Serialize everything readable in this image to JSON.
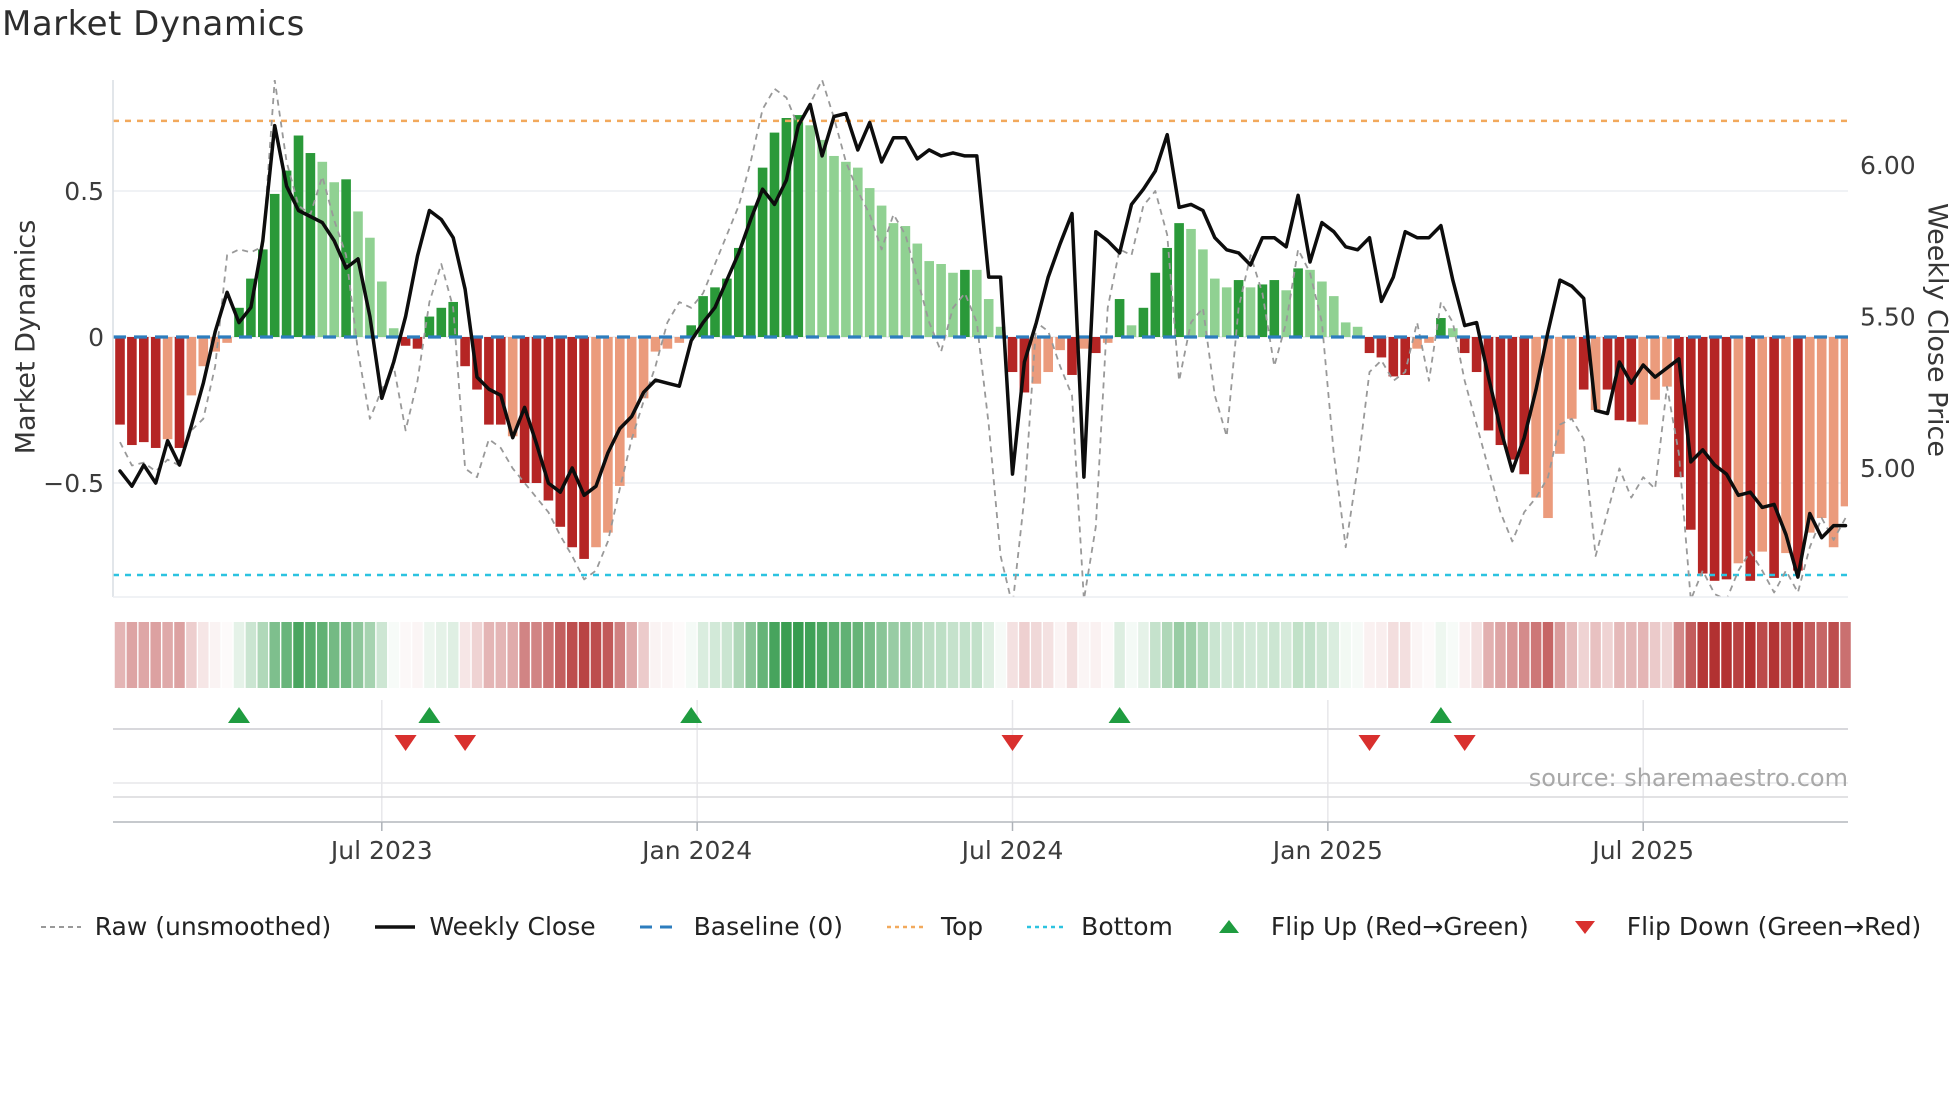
{
  "title": "Market Dynamics",
  "source": "source: sharemaestro.com",
  "left_axis": {
    "label": "Market Dynamics",
    "ticks": [
      {
        "label": "0.5",
        "value": 0.5
      },
      {
        "label": "0",
        "value": 0
      },
      {
        "label": "−0.5",
        "value": -0.5
      }
    ]
  },
  "right_axis": {
    "label": "Weekly Close Price",
    "ticks": [
      {
        "label": "6.00",
        "value": 6.0
      },
      {
        "label": "5.50",
        "value": 5.5
      },
      {
        "label": "5.00",
        "value": 5.0
      }
    ]
  },
  "x_axis": {
    "ticks": [
      {
        "label": "Jul 2023",
        "week": 22
      },
      {
        "label": "Jan 2024",
        "week": 48.5
      },
      {
        "label": "Jul 2024",
        "week": 75
      },
      {
        "label": "Jan 2025",
        "week": 101.5
      },
      {
        "label": "Jul 2025",
        "week": 128
      }
    ]
  },
  "legend": {
    "items": [
      {
        "label": "Raw (unsmoothed)",
        "glyph": "dashed-line",
        "color": "#999999",
        "dash": "5,4",
        "width": 2
      },
      {
        "label": "Weekly Close",
        "glyph": "solid-line",
        "color": "#111111",
        "dash": "",
        "width": 3.5
      },
      {
        "label": "Baseline (0)",
        "glyph": "dashed-line",
        "color": "#2d7dbe",
        "dash": "12,8",
        "width": 3
      },
      {
        "label": "Top",
        "glyph": "dotted-line",
        "color": "#f2a95c",
        "dash": "4,4",
        "width": 2.5
      },
      {
        "label": "Bottom",
        "glyph": "dotted-line",
        "color": "#2cc3e0",
        "dash": "4,4",
        "width": 2.5
      },
      {
        "label": "Flip Up (Red→Green)",
        "glyph": "triangle-up",
        "color": "#1f9c40"
      },
      {
        "label": "Flip Down (Green→Red)",
        "glyph": "triangle-down",
        "color": "#d9302e"
      }
    ]
  },
  "colors": {
    "bar_pos_strong": "#2a9939",
    "bar_pos_weak": "#90d192",
    "bar_neg_strong": "#b52524",
    "bar_neg_weak": "#eb9b7c",
    "price_line": "#0d0d0d",
    "raw_line": "#999999",
    "baseline": "#2d7dbe",
    "top_line": "#f2a95c",
    "bottom_line": "#2cc3e0",
    "flip_up": "#1f9c40",
    "flip_down": "#d9302e",
    "heat_pos": "#22923c",
    "heat_neg": "#b23030",
    "grid": "#ecedf2",
    "grid_dark": "#d8d8dc",
    "axis_line": "#c6c9cd",
    "spine": "#d9dde3",
    "tick_text": "#3c3c3c",
    "source_text": "#a8a8a8"
  },
  "chart_data": {
    "type": "bar",
    "description": "Weekly market-dynamics oscillator bars with weekly close price line, raw unsmoothed line, thresholds, heatmap strip and regime-flip markers",
    "weeks": 146,
    "baseline": 0,
    "top_threshold": 0.74,
    "bottom_threshold": -0.815,
    "ylim_dynamics": [
      -0.885,
      0.88
    ],
    "ylim_price": [
      4.57,
      6.28
    ],
    "flip_up_weeks": [
      10,
      26,
      48,
      84,
      111
    ],
    "flip_down_weeks": [
      24,
      29,
      75,
      105,
      113
    ],
    "bar_shades": "DDDDLDLLLLDDDDDDDLLDLLLLDDDDDDDDDLDDDDDDLLLLLLLLDDDDDDDDDDLLLLLLLLLLLLLDLLLDDLLLDLDLDLDDDDLLLLDLDDLDLLLLLDDDDLLDLDDDDDDLLLLDLDDDLLLDDDDDLDLDLDLLLL",
    "series": [
      {
        "name": "Smoothed Dynamics (bars)",
        "axis": "left",
        "values": [
          -0.3,
          -0.37,
          -0.36,
          -0.38,
          -0.35,
          -0.38,
          -0.2,
          -0.1,
          -0.05,
          -0.02,
          0.1,
          0.2,
          0.3,
          0.49,
          0.57,
          0.69,
          0.63,
          0.6,
          0.53,
          0.54,
          0.43,
          0.34,
          0.19,
          0.03,
          -0.03,
          -0.04,
          0.07,
          0.1,
          0.12,
          -0.1,
          -0.18,
          -0.3,
          -0.3,
          -0.34,
          -0.5,
          -0.5,
          -0.56,
          -0.65,
          -0.72,
          -0.76,
          -0.72,
          -0.67,
          -0.51,
          -0.345,
          -0.21,
          -0.05,
          -0.04,
          -0.02,
          0.04,
          0.14,
          0.17,
          0.2,
          0.305,
          0.45,
          0.58,
          0.7,
          0.75,
          0.76,
          0.725,
          0.675,
          0.62,
          0.6,
          0.58,
          0.51,
          0.45,
          0.39,
          0.38,
          0.32,
          0.26,
          0.25,
          0.22,
          0.23,
          0.23,
          0.13,
          0.035,
          -0.12,
          -0.19,
          -0.16,
          -0.12,
          -0.045,
          -0.13,
          -0.04,
          -0.055,
          -0.02,
          0.13,
          0.04,
          0.1,
          0.22,
          0.305,
          0.39,
          0.37,
          0.3,
          0.2,
          0.17,
          0.195,
          0.17,
          0.18,
          0.195,
          0.16,
          0.235,
          0.23,
          0.19,
          0.14,
          0.05,
          0.035,
          -0.055,
          -0.07,
          -0.135,
          -0.13,
          -0.04,
          -0.02,
          0.065,
          0.03,
          -0.055,
          -0.12,
          -0.32,
          -0.37,
          -0.42,
          -0.47,
          -0.55,
          -0.62,
          -0.4,
          -0.28,
          -0.18,
          -0.25,
          -0.18,
          -0.285,
          -0.29,
          -0.3,
          -0.215,
          -0.17,
          -0.48,
          -0.66,
          -0.81,
          -0.835,
          -0.83,
          -0.775,
          -0.835,
          -0.735,
          -0.825,
          -0.74,
          -0.8,
          -0.67,
          -0.62,
          -0.72,
          -0.58
        ]
      },
      {
        "name": "Raw (unsmoothed)",
        "axis": "left",
        "values": [
          -0.36,
          -0.44,
          -0.43,
          -0.46,
          -0.42,
          -0.44,
          -0.32,
          -0.28,
          -0.1,
          0.28,
          0.3,
          0.29,
          0.31,
          0.88,
          0.6,
          0.45,
          0.42,
          0.55,
          0.4,
          0.28,
          -0.05,
          -0.28,
          -0.18,
          -0.1,
          -0.32,
          -0.15,
          0.12,
          0.25,
          0.1,
          -0.45,
          -0.48,
          -0.35,
          -0.38,
          -0.45,
          -0.5,
          -0.55,
          -0.6,
          -0.68,
          -0.75,
          -0.83,
          -0.8,
          -0.7,
          -0.52,
          -0.35,
          -0.22,
          -0.1,
          0.05,
          0.12,
          0.1,
          0.15,
          0.25,
          0.35,
          0.45,
          0.6,
          0.78,
          0.85,
          0.82,
          0.72,
          0.8,
          0.88,
          0.75,
          0.6,
          0.5,
          0.42,
          0.3,
          0.42,
          0.35,
          0.2,
          0.05,
          -0.05,
          0.1,
          0.15,
          0.05,
          -0.3,
          -0.75,
          -0.92,
          -0.55,
          0.05,
          0.02,
          -0.1,
          -0.2,
          -0.9,
          -0.65,
          0.1,
          0.3,
          0.28,
          0.45,
          0.5,
          0.35,
          -0.15,
          0.05,
          0.1,
          -0.2,
          -0.34,
          0.1,
          0.28,
          0.15,
          -0.1,
          0.05,
          0.3,
          0.22,
          0.05,
          -0.4,
          -0.72,
          -0.45,
          -0.12,
          -0.08,
          -0.15,
          -0.12,
          0.05,
          -0.15,
          0.12,
          0.05,
          -0.15,
          -0.3,
          -0.45,
          -0.6,
          -0.7,
          -0.6,
          -0.55,
          -0.48,
          -0.3,
          -0.28,
          -0.35,
          -0.75,
          -0.6,
          -0.45,
          -0.55,
          -0.48,
          -0.52,
          -0.17,
          -0.4,
          -0.9,
          -0.8,
          -0.88,
          -0.9,
          -0.8,
          -0.735,
          -0.8,
          -0.875,
          -0.8,
          -0.875,
          -0.72,
          -0.62,
          -0.695,
          -0.62
        ]
      },
      {
        "name": "Weekly Close",
        "axis": "right",
        "values": [
          4.99,
          4.94,
          5.01,
          4.95,
          5.09,
          5.01,
          5.14,
          5.28,
          5.45,
          5.58,
          5.48,
          5.53,
          5.75,
          6.13,
          5.93,
          5.85,
          5.83,
          5.81,
          5.75,
          5.66,
          5.69,
          5.5,
          5.23,
          5.35,
          5.5,
          5.7,
          5.85,
          5.82,
          5.76,
          5.59,
          5.3,
          5.26,
          5.24,
          5.1,
          5.2,
          5.08,
          4.95,
          4.92,
          5.0,
          4.91,
          4.94,
          5.05,
          5.13,
          5.17,
          5.25,
          5.29,
          5.28,
          5.27,
          5.42,
          5.48,
          5.53,
          5.62,
          5.71,
          5.82,
          5.92,
          5.87,
          5.95,
          6.13,
          6.2,
          6.03,
          6.16,
          6.17,
          6.05,
          6.14,
          6.01,
          6.09,
          6.09,
          6.02,
          6.05,
          6.03,
          6.04,
          6.03,
          6.03,
          5.63,
          5.63,
          4.98,
          5.35,
          5.48,
          5.63,
          5.74,
          5.84,
          4.97,
          5.78,
          5.75,
          5.71,
          5.87,
          5.92,
          5.98,
          6.1,
          5.86,
          5.87,
          5.85,
          5.76,
          5.72,
          5.71,
          5.67,
          5.76,
          5.76,
          5.73,
          5.9,
          5.68,
          5.81,
          5.78,
          5.73,
          5.72,
          5.76,
          5.55,
          5.63,
          5.78,
          5.76,
          5.76,
          5.8,
          5.62,
          5.47,
          5.48,
          5.3,
          5.13,
          4.99,
          5.1,
          5.26,
          5.45,
          5.62,
          5.6,
          5.56,
          5.19,
          5.18,
          5.35,
          5.28,
          5.34,
          5.3,
          5.33,
          5.36,
          5.02,
          5.06,
          5.01,
          4.98,
          4.91,
          4.92,
          4.87,
          4.88,
          4.78,
          4.64,
          4.85,
          4.77,
          4.81,
          4.81
        ]
      }
    ]
  }
}
